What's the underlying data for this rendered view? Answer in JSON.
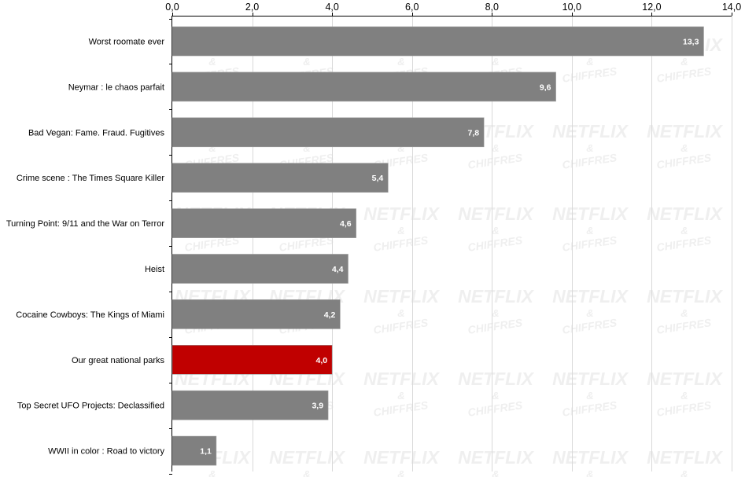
{
  "chart_data": {
    "type": "bar",
    "orientation": "horizontal",
    "categories": [
      "Worst roomate ever",
      "Neymar : le chaos parfait",
      "Bad Vegan: Fame. Fraud. Fugitives",
      "Crime scene : The Times Square Killer",
      "Turning Point: 9/11 and the War on Terror",
      "Heist",
      "Cocaine Cowboys: The Kings of Miami",
      "Our great national parks",
      "Top Secret UFO Projects: Declassified",
      "WWII in color : Road to victory"
    ],
    "values": [
      13.3,
      9.6,
      7.8,
      5.4,
      4.6,
      4.4,
      4.2,
      4.0,
      3.9,
      1.1
    ],
    "value_labels": [
      "13,3",
      "9,6",
      "7,8",
      "5,4",
      "4,6",
      "4,4",
      "4,2",
      "4,0",
      "3,9",
      "1,1"
    ],
    "highlight_index": 7,
    "xlim": [
      0,
      14
    ],
    "x_ticks": [
      0,
      2,
      4,
      6,
      8,
      10,
      12,
      14
    ],
    "x_tick_labels": [
      "0,0",
      "2,0",
      "4,0",
      "6,0",
      "8,0",
      "10,0",
      "12,0",
      "14,0"
    ],
    "x_axis_position": "top",
    "grid": true,
    "legend": "none",
    "title": "",
    "xlabel": "",
    "ylabel": "",
    "colors": {
      "bar": "#808080",
      "highlight": "#c00000",
      "grid": "#d9d9d9",
      "axis": "#000000",
      "data_label": "#ffffff",
      "watermark": "#efefef"
    }
  },
  "watermark": {
    "line1": "NETFLIX",
    "line2": "&",
    "line3": "CHIFFRES"
  }
}
